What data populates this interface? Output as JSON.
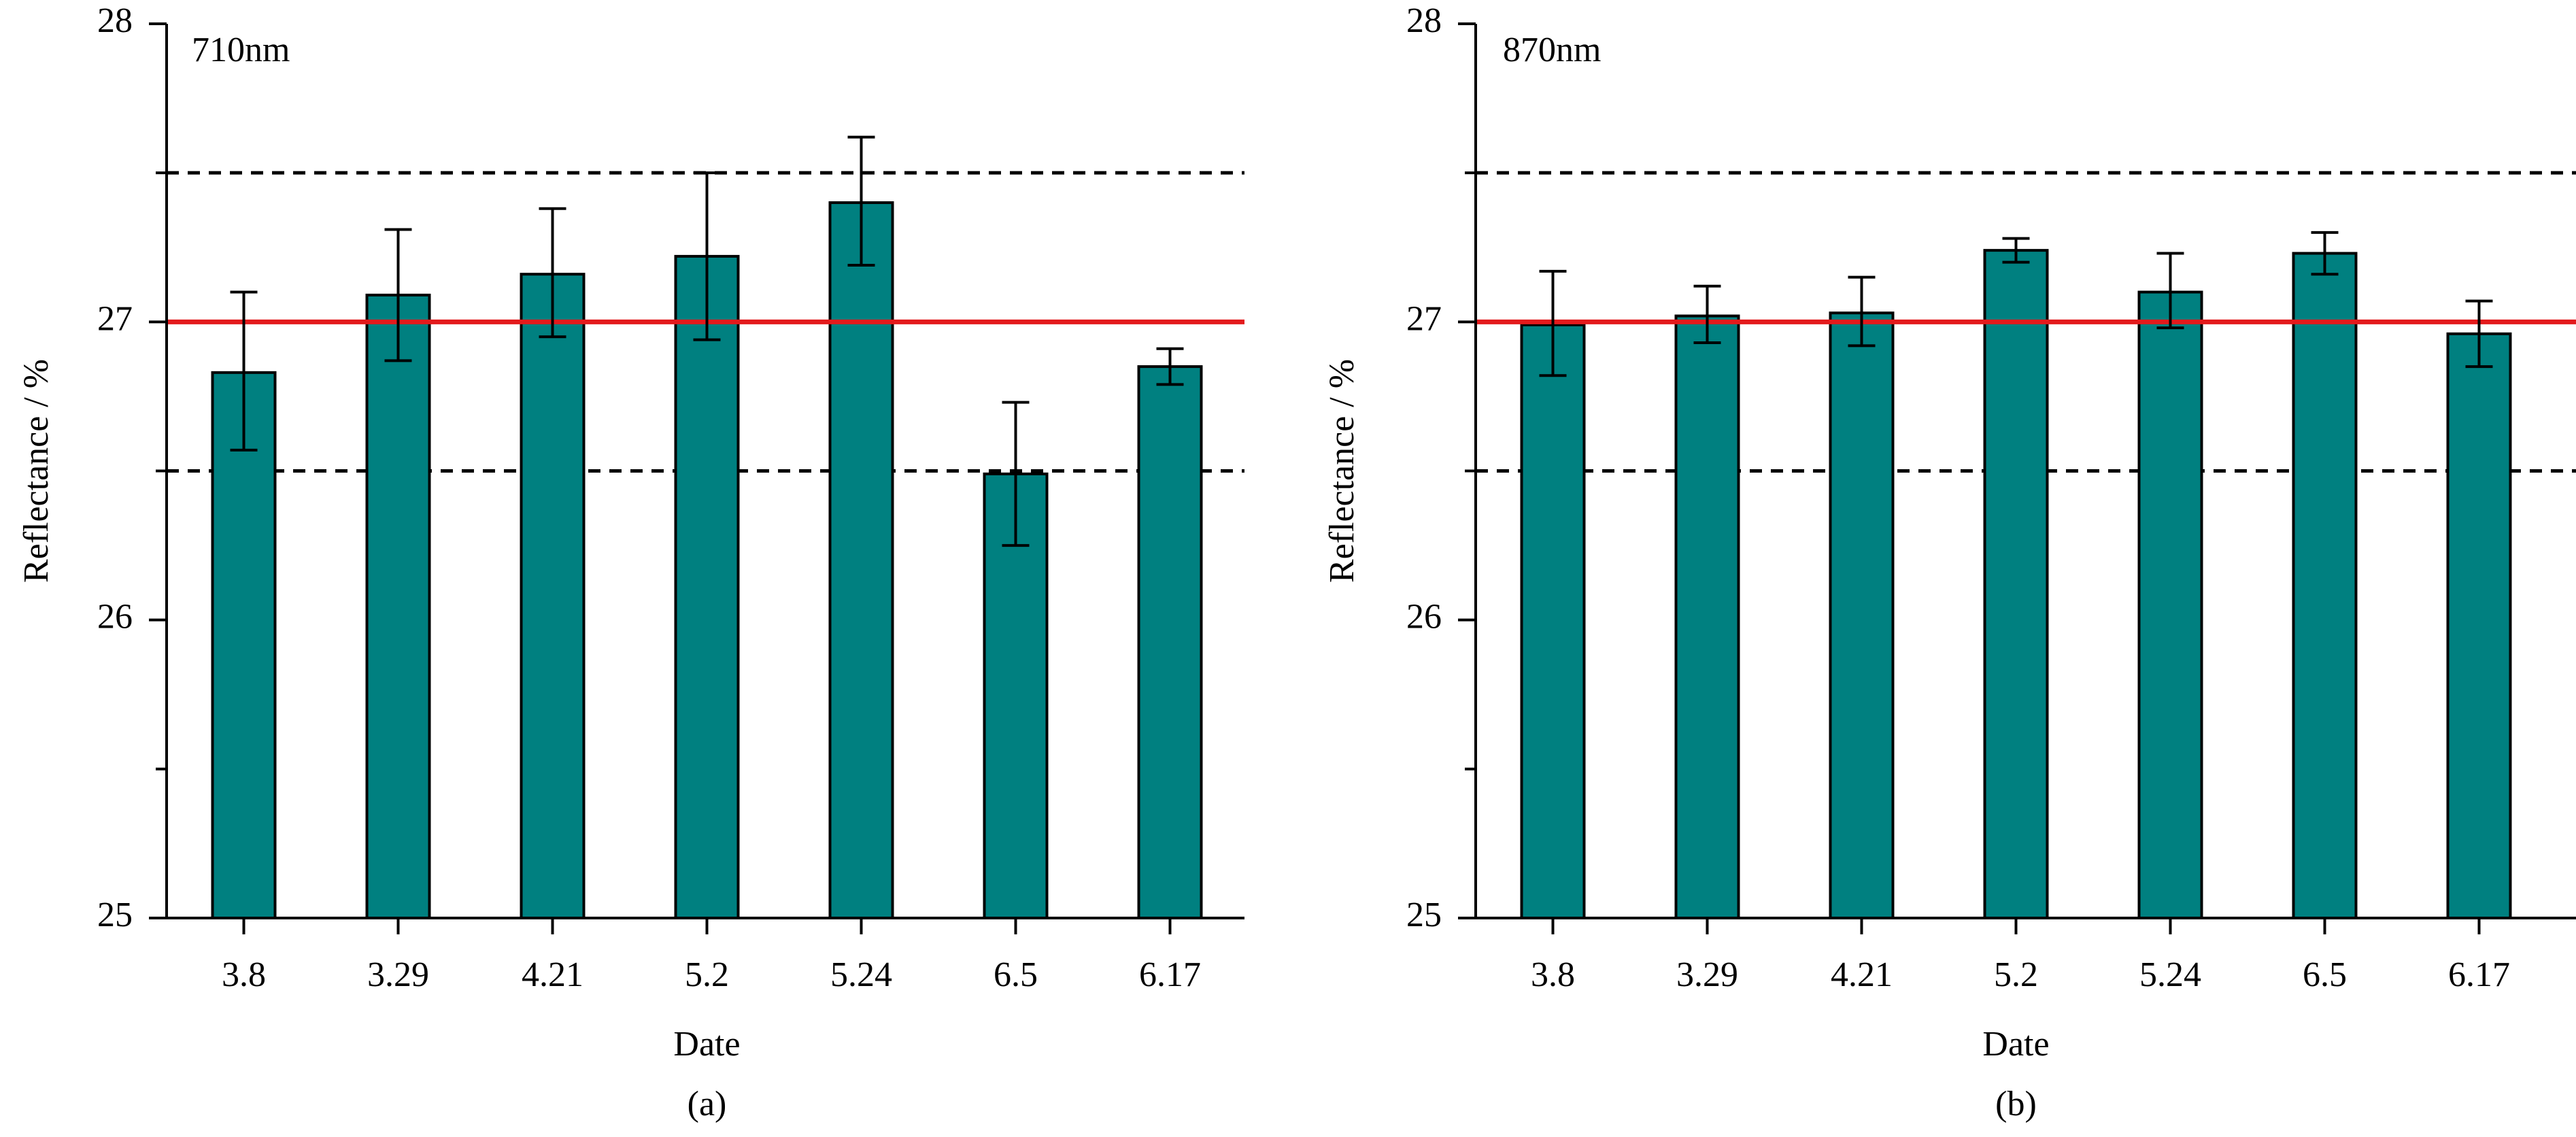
{
  "figure": {
    "colors": {
      "bar_fill": "#008080",
      "bar_stroke": "#000000",
      "reference_line": "#e31a1c",
      "tolerance_line": "#000000",
      "axis": "#000000"
    }
  },
  "chart_data": [
    {
      "type": "bar",
      "title": "710nm",
      "caption": "(a)",
      "xlabel": "Date",
      "ylabel": "Reflectance / %",
      "categories": [
        "3.8",
        "3.29",
        "4.21",
        "5.2",
        "5.24",
        "6.5",
        "6.17"
      ],
      "values": [
        26.83,
        27.09,
        27.16,
        27.22,
        27.4,
        26.49,
        26.85
      ],
      "error_low": [
        26.57,
        26.87,
        26.95,
        26.94,
        27.19,
        26.25,
        26.79
      ],
      "error_high": [
        27.1,
        27.31,
        27.38,
        27.5,
        27.62,
        26.73,
        26.91
      ],
      "ylim": [
        25,
        28
      ],
      "yticks": [
        "25",
        "26",
        "27",
        "28"
      ],
      "ytick_values": [
        25,
        26,
        27,
        28
      ],
      "yminor_ticks": [
        25.5,
        26.5,
        27.5
      ],
      "reference_line": 27,
      "tolerance_lines": [
        26.5,
        27.5
      ],
      "grid": false
    },
    {
      "type": "bar",
      "title": "870nm",
      "caption": "(b)",
      "xlabel": "Date",
      "ylabel": "Reflectance / %",
      "categories": [
        "3.8",
        "3.29",
        "4.21",
        "5.2",
        "5.24",
        "6.5",
        "6.17"
      ],
      "values": [
        26.99,
        27.02,
        27.03,
        27.24,
        27.1,
        27.23,
        26.96
      ],
      "error_low": [
        26.82,
        26.93,
        26.92,
        27.2,
        26.98,
        27.16,
        26.85
      ],
      "error_high": [
        27.17,
        27.12,
        27.15,
        27.28,
        27.23,
        27.3,
        27.07
      ],
      "ylim": [
        25,
        28
      ],
      "yticks": [
        "25",
        "26",
        "27",
        "28"
      ],
      "ytick_values": [
        25,
        26,
        27,
        28
      ],
      "yminor_ticks": [
        25.5,
        26.5,
        27.5
      ],
      "reference_line": 27,
      "tolerance_lines": [
        26.5,
        27.5
      ],
      "grid": false
    }
  ]
}
